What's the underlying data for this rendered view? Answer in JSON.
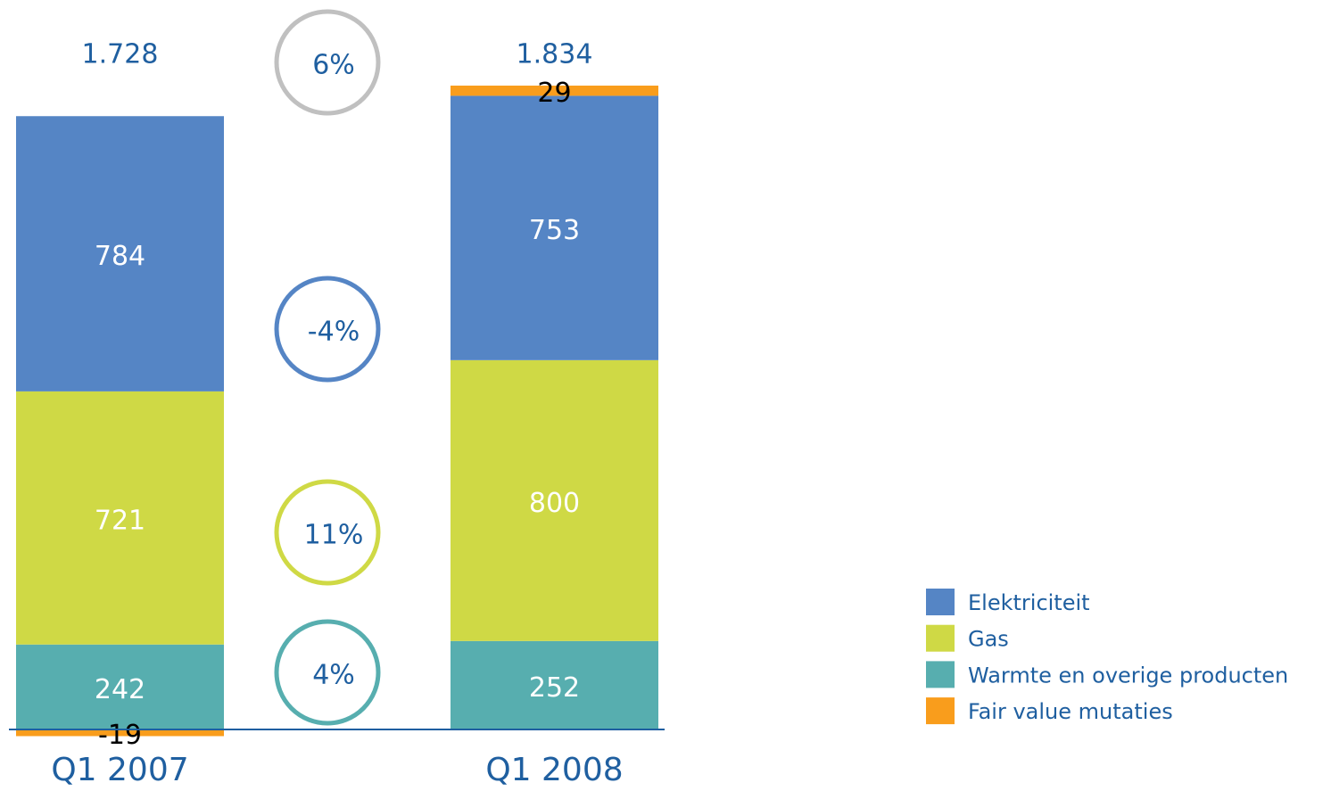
{
  "chart_data": {
    "type": "stacked_bar",
    "categories": [
      "Q1 2007",
      "Q1 2008"
    ],
    "series": [
      {
        "name": "Warmte en overige producten",
        "color": "#57aeaf",
        "values": [
          242,
          252
        ]
      },
      {
        "name": "Gas",
        "color": "#cfd945",
        "values": [
          721,
          800
        ]
      },
      {
        "name": "Elektriciteit",
        "color": "#5585c5",
        "values": [
          784,
          753
        ]
      },
      {
        "name": "Fair value mutaties",
        "color": "#f99d1c",
        "values": [
          -19,
          29
        ]
      }
    ],
    "totals": {
      "values": [
        1728,
        1834
      ],
      "value_labels": [
        "1.728",
        "1.834"
      ]
    },
    "changes": {
      "values": [
        6,
        -4,
        11,
        4
      ],
      "value_labels": [
        "6%",
        "-4%",
        "11%",
        "4%"
      ],
      "colors": [
        "#c0c0c0",
        "#5585c5",
        "#cfd945",
        "#57aeaf"
      ]
    }
  }
}
